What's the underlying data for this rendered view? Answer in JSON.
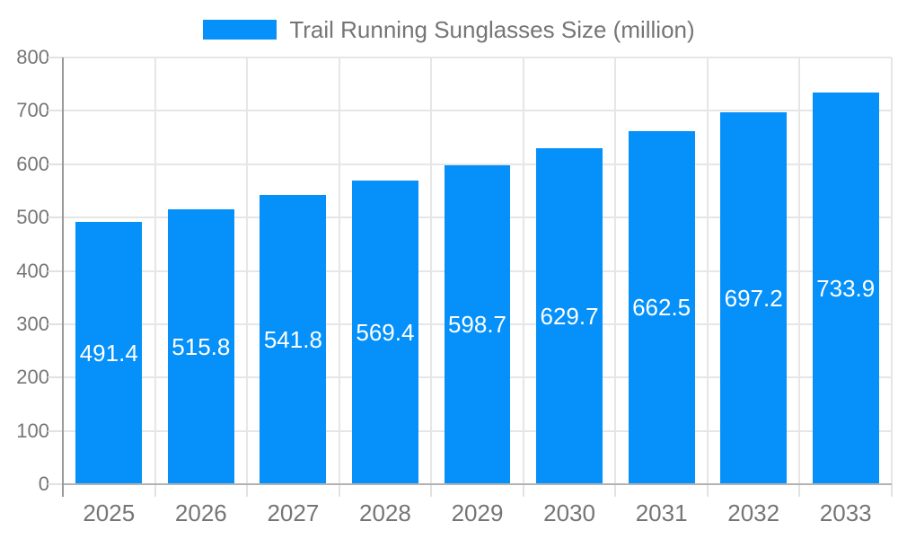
{
  "chart_data": {
    "type": "bar",
    "title": "",
    "legend": "Trail Running Sunglasses Size (million)",
    "legend_position": "top-center",
    "categories": [
      "2025",
      "2026",
      "2027",
      "2028",
      "2029",
      "2030",
      "2031",
      "2032",
      "2033"
    ],
    "values": [
      491.4,
      515.8,
      541.8,
      569.4,
      598.7,
      629.7,
      662.5,
      697.2,
      733.9
    ],
    "value_label_decimals": 1,
    "value_label_position": "inside-center",
    "xlabel": "",
    "ylabel": "",
    "ylim": [
      0,
      800
    ],
    "yticks": [
      0,
      100,
      200,
      300,
      400,
      500,
      600,
      700,
      800
    ],
    "grid": true,
    "bar_width_fraction": 0.72,
    "colors": {
      "bar": "#0591f9",
      "grid": "#e6e6e6",
      "axis_bottom": "#b3b3b3",
      "axis_left": "#999999",
      "tick": "#e2e2e2",
      "text": "#757575",
      "value_text": "#ffffff",
      "background": "#ffffff"
    }
  }
}
